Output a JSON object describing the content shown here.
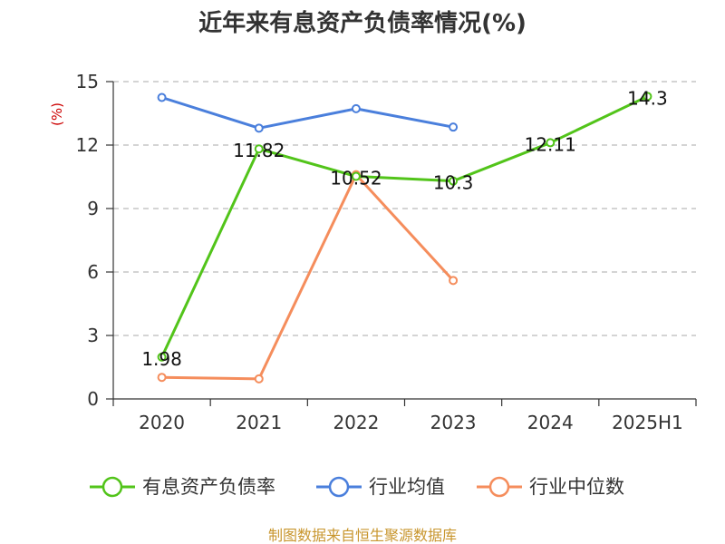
{
  "chart_data": {
    "type": "line",
    "title": "近年来有息资产负债率情况(%)",
    "ylabel": "(%)",
    "xlabel": "",
    "categories": [
      "2020",
      "2021",
      "2022",
      "2023",
      "2024",
      "2025H1"
    ],
    "ylim": [
      0,
      15
    ],
    "yticks": [
      0,
      3,
      6,
      9,
      12,
      15
    ],
    "grid": true,
    "legend_position": "bottom",
    "series": [
      {
        "name": "有息资产负债率",
        "color": "#52c41a",
        "values": [
          1.98,
          11.82,
          10.52,
          10.3,
          12.11,
          14.3
        ],
        "labels": [
          "1.98",
          "11.82",
          "10.52",
          "10.3",
          "12.11",
          "14.3"
        ]
      },
      {
        "name": "行业均值",
        "color": "#4a7fdc",
        "values": [
          14.25,
          12.8,
          13.72,
          12.85,
          null,
          null
        ]
      },
      {
        "name": "行业中位数",
        "color": "#f58d5c",
        "values": [
          1.02,
          0.95,
          10.6,
          5.6,
          null,
          null
        ]
      }
    ]
  },
  "source_text": "制图数据来自恒生聚源数据库"
}
